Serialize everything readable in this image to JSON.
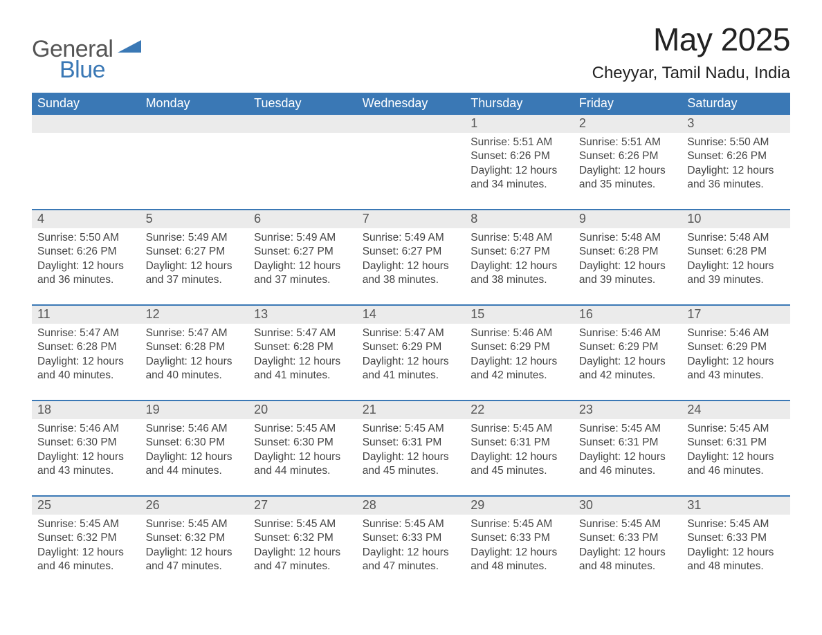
{
  "brand": {
    "word1": "General",
    "word2": "Blue",
    "logo_color": "#3a78b5",
    "text_gray": "#555555"
  },
  "header": {
    "month_title": "May 2025",
    "location": "Cheyyar, Tamil Nadu, India"
  },
  "colors": {
    "header_bg": "#3a78b5",
    "header_text": "#ffffff",
    "daynum_bg": "#ebebeb",
    "daynum_text": "#555555",
    "body_text": "#444444",
    "page_bg": "#ffffff",
    "week_divider": "#3a78b5"
  },
  "weekdays": [
    "Sunday",
    "Monday",
    "Tuesday",
    "Wednesday",
    "Thursday",
    "Friday",
    "Saturday"
  ],
  "weeks": [
    {
      "days": [
        {
          "num": "",
          "sunrise": "",
          "sunset": "",
          "daylight": ""
        },
        {
          "num": "",
          "sunrise": "",
          "sunset": "",
          "daylight": ""
        },
        {
          "num": "",
          "sunrise": "",
          "sunset": "",
          "daylight": ""
        },
        {
          "num": "",
          "sunrise": "",
          "sunset": "",
          "daylight": ""
        },
        {
          "num": "1",
          "sunrise": "Sunrise: 5:51 AM",
          "sunset": "Sunset: 6:26 PM",
          "daylight": "Daylight: 12 hours and 34 minutes."
        },
        {
          "num": "2",
          "sunrise": "Sunrise: 5:51 AM",
          "sunset": "Sunset: 6:26 PM",
          "daylight": "Daylight: 12 hours and 35 minutes."
        },
        {
          "num": "3",
          "sunrise": "Sunrise: 5:50 AM",
          "sunset": "Sunset: 6:26 PM",
          "daylight": "Daylight: 12 hours and 36 minutes."
        }
      ]
    },
    {
      "days": [
        {
          "num": "4",
          "sunrise": "Sunrise: 5:50 AM",
          "sunset": "Sunset: 6:26 PM",
          "daylight": "Daylight: 12 hours and 36 minutes."
        },
        {
          "num": "5",
          "sunrise": "Sunrise: 5:49 AM",
          "sunset": "Sunset: 6:27 PM",
          "daylight": "Daylight: 12 hours and 37 minutes."
        },
        {
          "num": "6",
          "sunrise": "Sunrise: 5:49 AM",
          "sunset": "Sunset: 6:27 PM",
          "daylight": "Daylight: 12 hours and 37 minutes."
        },
        {
          "num": "7",
          "sunrise": "Sunrise: 5:49 AM",
          "sunset": "Sunset: 6:27 PM",
          "daylight": "Daylight: 12 hours and 38 minutes."
        },
        {
          "num": "8",
          "sunrise": "Sunrise: 5:48 AM",
          "sunset": "Sunset: 6:27 PM",
          "daylight": "Daylight: 12 hours and 38 minutes."
        },
        {
          "num": "9",
          "sunrise": "Sunrise: 5:48 AM",
          "sunset": "Sunset: 6:28 PM",
          "daylight": "Daylight: 12 hours and 39 minutes."
        },
        {
          "num": "10",
          "sunrise": "Sunrise: 5:48 AM",
          "sunset": "Sunset: 6:28 PM",
          "daylight": "Daylight: 12 hours and 39 minutes."
        }
      ]
    },
    {
      "days": [
        {
          "num": "11",
          "sunrise": "Sunrise: 5:47 AM",
          "sunset": "Sunset: 6:28 PM",
          "daylight": "Daylight: 12 hours and 40 minutes."
        },
        {
          "num": "12",
          "sunrise": "Sunrise: 5:47 AM",
          "sunset": "Sunset: 6:28 PM",
          "daylight": "Daylight: 12 hours and 40 minutes."
        },
        {
          "num": "13",
          "sunrise": "Sunrise: 5:47 AM",
          "sunset": "Sunset: 6:28 PM",
          "daylight": "Daylight: 12 hours and 41 minutes."
        },
        {
          "num": "14",
          "sunrise": "Sunrise: 5:47 AM",
          "sunset": "Sunset: 6:29 PM",
          "daylight": "Daylight: 12 hours and 41 minutes."
        },
        {
          "num": "15",
          "sunrise": "Sunrise: 5:46 AM",
          "sunset": "Sunset: 6:29 PM",
          "daylight": "Daylight: 12 hours and 42 minutes."
        },
        {
          "num": "16",
          "sunrise": "Sunrise: 5:46 AM",
          "sunset": "Sunset: 6:29 PM",
          "daylight": "Daylight: 12 hours and 42 minutes."
        },
        {
          "num": "17",
          "sunrise": "Sunrise: 5:46 AM",
          "sunset": "Sunset: 6:29 PM",
          "daylight": "Daylight: 12 hours and 43 minutes."
        }
      ]
    },
    {
      "days": [
        {
          "num": "18",
          "sunrise": "Sunrise: 5:46 AM",
          "sunset": "Sunset: 6:30 PM",
          "daylight": "Daylight: 12 hours and 43 minutes."
        },
        {
          "num": "19",
          "sunrise": "Sunrise: 5:46 AM",
          "sunset": "Sunset: 6:30 PM",
          "daylight": "Daylight: 12 hours and 44 minutes."
        },
        {
          "num": "20",
          "sunrise": "Sunrise: 5:45 AM",
          "sunset": "Sunset: 6:30 PM",
          "daylight": "Daylight: 12 hours and 44 minutes."
        },
        {
          "num": "21",
          "sunrise": "Sunrise: 5:45 AM",
          "sunset": "Sunset: 6:31 PM",
          "daylight": "Daylight: 12 hours and 45 minutes."
        },
        {
          "num": "22",
          "sunrise": "Sunrise: 5:45 AM",
          "sunset": "Sunset: 6:31 PM",
          "daylight": "Daylight: 12 hours and 45 minutes."
        },
        {
          "num": "23",
          "sunrise": "Sunrise: 5:45 AM",
          "sunset": "Sunset: 6:31 PM",
          "daylight": "Daylight: 12 hours and 46 minutes."
        },
        {
          "num": "24",
          "sunrise": "Sunrise: 5:45 AM",
          "sunset": "Sunset: 6:31 PM",
          "daylight": "Daylight: 12 hours and 46 minutes."
        }
      ]
    },
    {
      "days": [
        {
          "num": "25",
          "sunrise": "Sunrise: 5:45 AM",
          "sunset": "Sunset: 6:32 PM",
          "daylight": "Daylight: 12 hours and 46 minutes."
        },
        {
          "num": "26",
          "sunrise": "Sunrise: 5:45 AM",
          "sunset": "Sunset: 6:32 PM",
          "daylight": "Daylight: 12 hours and 47 minutes."
        },
        {
          "num": "27",
          "sunrise": "Sunrise: 5:45 AM",
          "sunset": "Sunset: 6:32 PM",
          "daylight": "Daylight: 12 hours and 47 minutes."
        },
        {
          "num": "28",
          "sunrise": "Sunrise: 5:45 AM",
          "sunset": "Sunset: 6:33 PM",
          "daylight": "Daylight: 12 hours and 47 minutes."
        },
        {
          "num": "29",
          "sunrise": "Sunrise: 5:45 AM",
          "sunset": "Sunset: 6:33 PM",
          "daylight": "Daylight: 12 hours and 48 minutes."
        },
        {
          "num": "30",
          "sunrise": "Sunrise: 5:45 AM",
          "sunset": "Sunset: 6:33 PM",
          "daylight": "Daylight: 12 hours and 48 minutes."
        },
        {
          "num": "31",
          "sunrise": "Sunrise: 5:45 AM",
          "sunset": "Sunset: 6:33 PM",
          "daylight": "Daylight: 12 hours and 48 minutes."
        }
      ]
    }
  ]
}
